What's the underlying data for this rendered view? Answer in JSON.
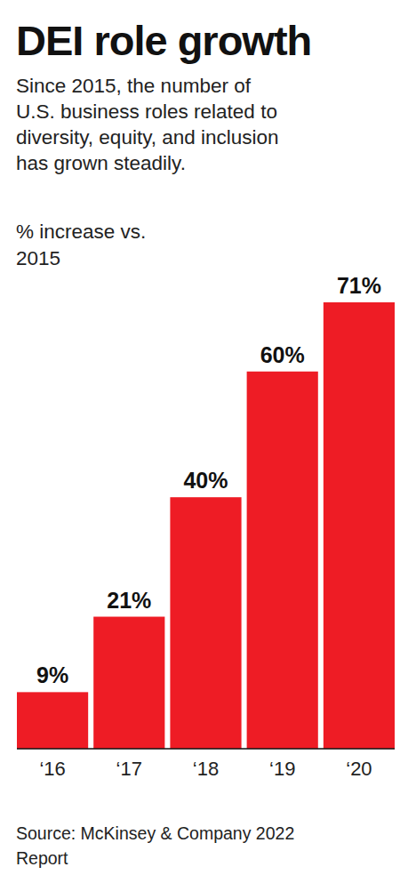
{
  "chart_data": {
    "type": "bar",
    "title": "DEI role growth",
    "subtitle": [
      "Since 2015, the number of",
      "U.S. business roles related to",
      "diversity, equity, and inclusion",
      "has grown steadily."
    ],
    "ylabel": [
      "% increase vs.",
      "2015"
    ],
    "categories": [
      "‘16",
      "‘17",
      "‘18",
      "‘19",
      "‘20"
    ],
    "values": [
      9,
      21,
      40,
      60,
      71
    ],
    "value_labels": [
      "9%",
      "21%",
      "40%",
      "60%",
      "71%"
    ],
    "data_labels": true,
    "color": "#ee1c25",
    "ylim": [
      0,
      71
    ],
    "yticks": [],
    "tick_labels": "x",
    "grid": false,
    "source": [
      "Source: McKinsey & Company 2022",
      "Report"
    ]
  }
}
